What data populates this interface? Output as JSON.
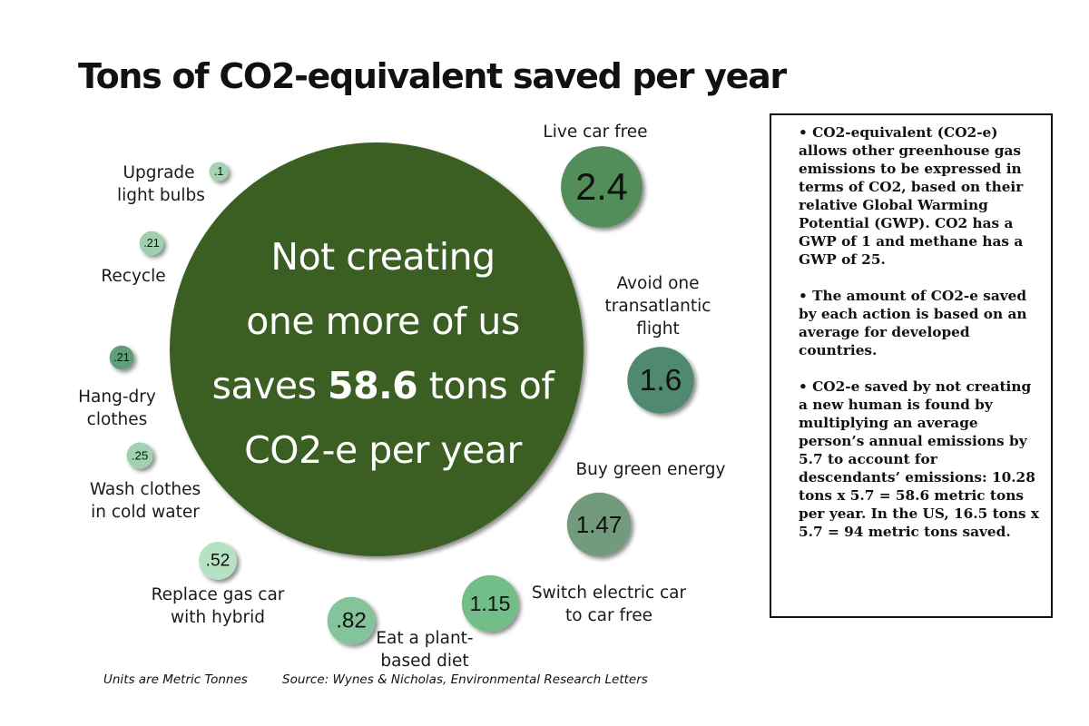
{
  "title": "Tons of CO2-equivalent  saved per year",
  "chart_data": {
    "type": "bubble",
    "title": "Tons of CO2-equivalent  saved per year",
    "unit": "Metric Tonnes",
    "main": {
      "value": 58.6,
      "text_lines": [
        "Not creating",
        "one more of us"
      ],
      "text_prefix": "saves",
      "text_value": "58.6",
      "text_suffix": "tons of",
      "text_last": "CO2-e per year",
      "color": "#3b5e21"
    },
    "actions": [
      {
        "label": "Upgrade light bulbs",
        "label_lines": [
          "Upgrade",
          "light bulbs"
        ],
        "value": 0.1,
        "display": ".1",
        "color": "#a3d3b2"
      },
      {
        "label": "Recycle",
        "label_lines": [
          "Recycle"
        ],
        "value": 0.21,
        "display": ".21",
        "color": "#9fd0ae"
      },
      {
        "label": "Hang-dry clothes",
        "label_lines": [
          "Hang-dry",
          "clothes"
        ],
        "value": 0.21,
        "display": ".21",
        "color": "#5f9e78"
      },
      {
        "label": "Wash clothes in cold water",
        "label_lines": [
          "Wash clothes",
          "in cold water"
        ],
        "value": 0.25,
        "display": ".25",
        "color": "#9fd3b0"
      },
      {
        "label": "Replace gas car with hybrid",
        "label_lines": [
          "Replace gas car",
          "with hybrid"
        ],
        "value": 0.52,
        "display": ".52",
        "color": "#b5e2c2"
      },
      {
        "label": "Eat a plant-based diet",
        "label_lines": [
          "Eat a plant-",
          "based diet"
        ],
        "value": 0.82,
        "display": ".82",
        "color": "#84c49a"
      },
      {
        "label": "Switch electric car to car free",
        "label_lines": [
          "Switch electric car",
          "to car free"
        ],
        "value": 1.15,
        "display": "1.15",
        "color": "#73bd89"
      },
      {
        "label": "Buy green energy",
        "label_lines": [
          "Buy green energy"
        ],
        "value": 1.47,
        "display": "1.47",
        "color": "#729a7b"
      },
      {
        "label": "Avoid one transatlantic flight",
        "label_lines": [
          "Avoid one",
          "transatlantic",
          "flight"
        ],
        "value": 1.6,
        "display": "1.6",
        "color": "#4f8a70"
      },
      {
        "label": "Live car free",
        "label_lines": [
          "Live car free"
        ],
        "value": 2.4,
        "display": "2.4",
        "color": "#538d5a"
      }
    ]
  },
  "notes": {
    "p1": "• CO2-equivalent (CO2-e) allows other greenhouse gas emissions to be expressed in terms of CO2, based on their relative Global Warming Potential (GWP). CO2 has a GWP of 1 and methane has a GWP of 25.",
    "p2": "• The amount of CO2-e saved by each action is based on an average for developed countries.",
    "p3": "• CO2-e saved by not creating a new human is found by multiplying an average person’s annual emissions by 5.7 to account for descendants’ emissions: 10.28 tons x 5.7 = 58.6 metric tons per year. In the US, 16.5 tons x 5.7 = 94 metric tons saved."
  },
  "footer": {
    "units": "Units are Metric Tonnes",
    "source": "Source: Wynes & Nicholas, Environmental Research Letters"
  }
}
